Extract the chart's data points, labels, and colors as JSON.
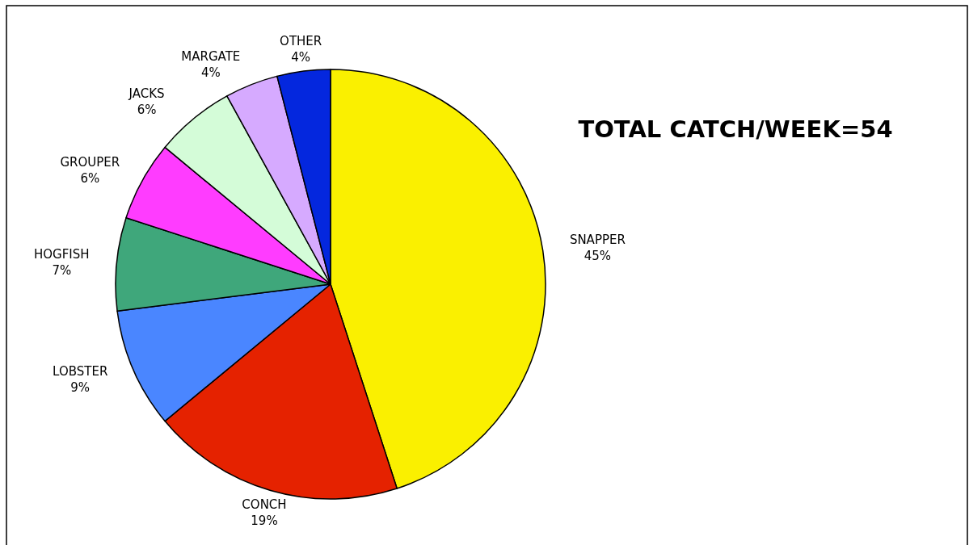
{
  "chart_data": {
    "type": "pie",
    "title": "TOTAL CATCH/WEEK=54",
    "categories": [
      "SNAPPER",
      "CONCH",
      "LOBSTER",
      "HOGFISH",
      "GROUPER",
      "JACKS",
      "MARGATE",
      "OTHER"
    ],
    "values": [
      45,
      19,
      9,
      7,
      6,
      6,
      4,
      4
    ],
    "value_labels": [
      "45%",
      "19%",
      "9%",
      "7%",
      "6%",
      "6%",
      "4%",
      "4%"
    ],
    "colors": [
      "#faf000",
      "#e52200",
      "#4a86ff",
      "#3fa77b",
      "#ff3cff",
      "#d4fcd8",
      "#d6aaff",
      "#0427de"
    ]
  }
}
